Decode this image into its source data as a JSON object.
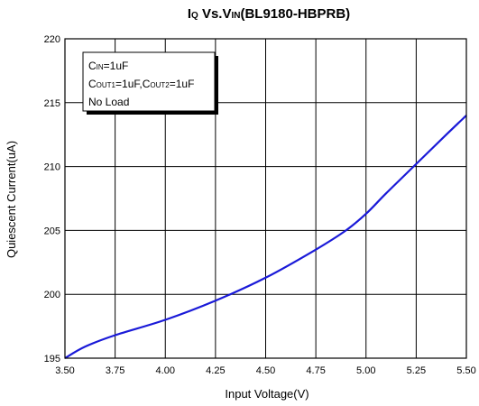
{
  "chart_data": {
    "type": "line",
    "title": {
      "main": "I",
      "main_sub": "Q",
      "middle": " Vs.V",
      "middle_sub": "IN",
      "tail": "(BL9180-HBPRB)"
    },
    "xlabel": "Input Voltage(V)",
    "ylabel": "Quiescent Current(uA)",
    "xlim": [
      3.5,
      5.5
    ],
    "ylim": [
      195,
      220
    ],
    "x_ticks": [
      "3.50",
      "3.75",
      "4.00",
      "4.25",
      "4.50",
      "4.75",
      "5.00",
      "5.25",
      "5.50"
    ],
    "y_ticks": [
      "195",
      "200",
      "205",
      "210",
      "215",
      "220"
    ],
    "grid": true,
    "legend_lines": [
      {
        "main": "C",
        "sub": "IN",
        "rest": "=1uF"
      },
      {
        "main": "C",
        "sub": "OUT1",
        "rest": "=1uF,C",
        "sub2": "OUT2",
        "rest2": "=1uF"
      },
      {
        "main": "No Load"
      }
    ],
    "legend_position": "top-left",
    "series": [
      {
        "color": "#1a1ad8",
        "x": [
          3.5,
          3.6,
          3.75,
          4.0,
          4.25,
          4.5,
          4.75,
          4.9,
          5.0,
          5.1,
          5.25,
          5.4,
          5.5
        ],
        "y": [
          195.0,
          195.9,
          196.8,
          198.0,
          199.5,
          201.3,
          203.5,
          205.0,
          206.3,
          207.9,
          210.2,
          212.5,
          214.0
        ]
      }
    ]
  }
}
